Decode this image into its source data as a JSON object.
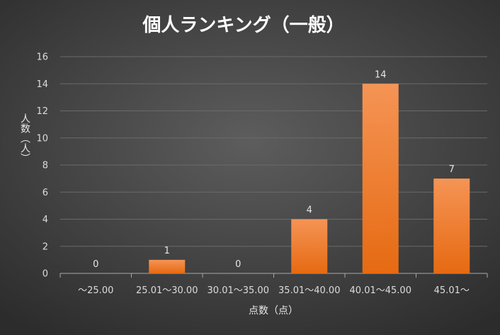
{
  "chart_data": {
    "type": "bar",
    "title": "個人ランキング（一般）",
    "xlabel": "点数（点）",
    "ylabel": "人数（人）",
    "categories": [
      "～25.00",
      "25.01～30.00",
      "30.01～35.00",
      "35.01～40.00",
      "40.01～45.00",
      "45.01～"
    ],
    "values": [
      0,
      1,
      0,
      4,
      14,
      7
    ],
    "ylim": [
      0,
      16
    ],
    "yticks": [
      0,
      2,
      4,
      6,
      8,
      10,
      12,
      14,
      16
    ],
    "grid": true,
    "legend": "none",
    "bar_color_top": "#f59455",
    "bar_color_bottom": "#e66a12",
    "background": "#474747"
  }
}
